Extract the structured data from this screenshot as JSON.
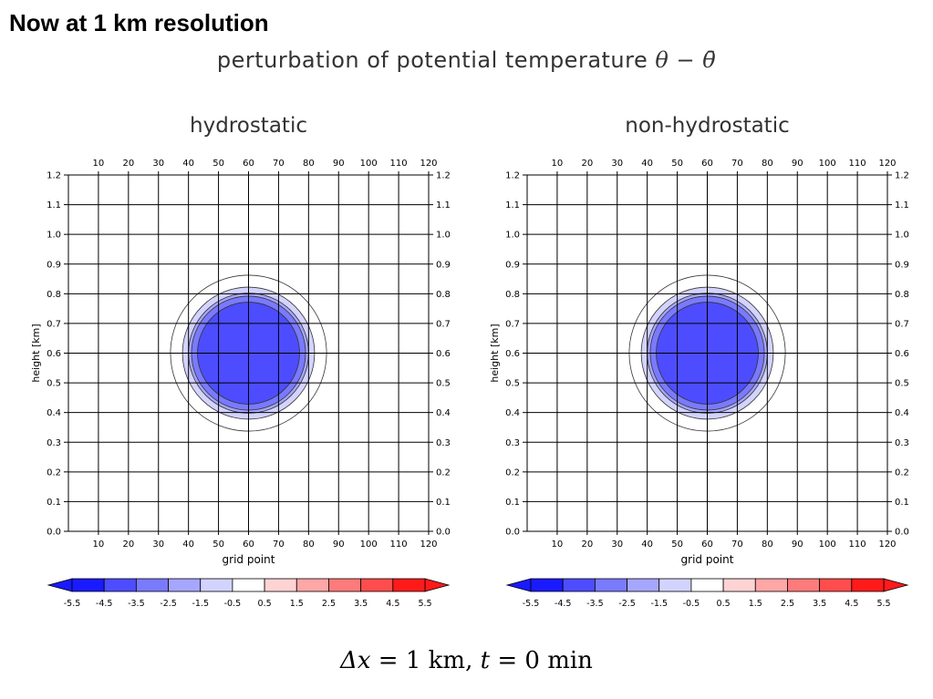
{
  "slide": {
    "title": "Now at 1 km resolution"
  },
  "figure": {
    "main_title_text": "perturbation of potential temperature ",
    "main_title_math": "θ − θ̄",
    "caption_parts": {
      "delta_x": "Δx",
      "eq1": " = 1 ",
      "unit1": "km",
      "sep": ", ",
      "t": "t",
      "eq2": " = 0 ",
      "unit2": "min"
    }
  },
  "colors": {
    "colorbar": [
      "#1a1aff",
      "#4d4dff",
      "#7a7aff",
      "#a6a6ff",
      "#d3d3ff",
      "#ffffff",
      "#ffd3d3",
      "#ffa6a6",
      "#ff7a7a",
      "#ff4d4d",
      "#ff1a1a"
    ],
    "contour_line": "#333333",
    "grid_line": "#000000"
  },
  "chart_data": [
    {
      "type": "heatmap",
      "title": "hydrostatic",
      "xlabel": "grid point",
      "ylabel": "height [km]",
      "xlim": [
        0,
        120
      ],
      "ylim": [
        0.0,
        1.2
      ],
      "xticks": [
        "10",
        "20",
        "30",
        "40",
        "50",
        "60",
        "70",
        "80",
        "90",
        "100",
        "110",
        "120"
      ],
      "yticks": [
        "0.0",
        "0.1",
        "0.2",
        "0.3",
        "0.4",
        "0.5",
        "0.6",
        "0.7",
        "0.8",
        "0.9",
        "1.0",
        "1.1",
        "1.2"
      ],
      "grid": true,
      "bubble": {
        "center_x": 60,
        "center_z": 0.6,
        "levels": [
          {
            "radius_x": 26,
            "value": -0.5
          },
          {
            "radius_x": 22,
            "value": -1.5
          },
          {
            "radius_x": 20,
            "value": -2.5
          },
          {
            "radius_x": 19,
            "value": -3.5
          },
          {
            "radius_x": 17,
            "value": -4.5
          }
        ]
      },
      "colorbar": {
        "labels": [
          "-5.5",
          "-4.5",
          "-3.5",
          "-2.5",
          "-1.5",
          "-0.5",
          "0.5",
          "1.5",
          "2.5",
          "3.5",
          "4.5",
          "5.5"
        ]
      }
    },
    {
      "type": "heatmap",
      "title": "non-hydrostatic",
      "xlabel": "grid point",
      "ylabel": "height [km]",
      "xlim": [
        0,
        120
      ],
      "ylim": [
        0.0,
        1.2
      ],
      "xticks": [
        "10",
        "20",
        "30",
        "40",
        "50",
        "60",
        "70",
        "80",
        "90",
        "100",
        "110",
        "120"
      ],
      "yticks": [
        "0.0",
        "0.1",
        "0.2",
        "0.3",
        "0.4",
        "0.5",
        "0.6",
        "0.7",
        "0.8",
        "0.9",
        "1.0",
        "1.1",
        "1.2"
      ],
      "grid": true,
      "bubble": {
        "center_x": 60,
        "center_z": 0.6,
        "levels": [
          {
            "radius_x": 26,
            "value": -0.5
          },
          {
            "radius_x": 22,
            "value": -1.5
          },
          {
            "radius_x": 20,
            "value": -2.5
          },
          {
            "radius_x": 19,
            "value": -3.5
          },
          {
            "radius_x": 17,
            "value": -4.5
          }
        ]
      },
      "colorbar": {
        "labels": [
          "-5.5",
          "-4.5",
          "-3.5",
          "-2.5",
          "-1.5",
          "-0.5",
          "0.5",
          "1.5",
          "2.5",
          "3.5",
          "4.5",
          "5.5"
        ]
      }
    }
  ]
}
